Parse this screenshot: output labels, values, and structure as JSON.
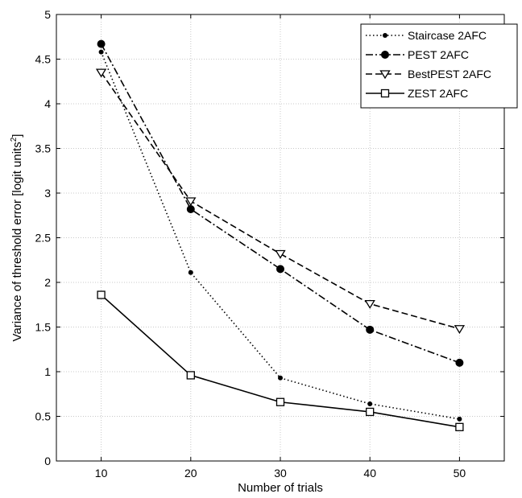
{
  "chart_data": {
    "type": "line",
    "title": "",
    "xlabel": "Number of trials",
    "ylabel": "Variance of threshold error [logit units",
    "ylabel_superscript": "2",
    "ylabel_close": "]",
    "x": [
      10,
      20,
      30,
      40,
      50
    ],
    "xlim": [
      5,
      55
    ],
    "ylim": [
      0,
      5
    ],
    "xticks": [
      "10",
      "20",
      "30",
      "40",
      "50"
    ],
    "yticks": [
      "0",
      "0.5",
      "1",
      "1.5",
      "2",
      "2.5",
      "3",
      "3.5",
      "4",
      "4.5",
      "5"
    ],
    "grid": true,
    "legend_position": "top-right",
    "series": [
      {
        "name": "Staircase 2AFC",
        "values": [
          4.58,
          2.11,
          0.93,
          0.64,
          0.47
        ],
        "line": "dotted",
        "marker": "small-dot",
        "color": "#000000"
      },
      {
        "name": "PEST 2AFC",
        "values": [
          4.67,
          2.82,
          2.15,
          1.47,
          1.1
        ],
        "line": "dashdot",
        "marker": "dot",
        "color": "#000000"
      },
      {
        "name": "BestPEST 2AFC",
        "values": [
          4.35,
          2.91,
          2.32,
          1.76,
          1.48
        ],
        "line": "dashed",
        "marker": "triangle-down",
        "color": "#000000"
      },
      {
        "name": "ZEST 2AFC",
        "values": [
          1.86,
          0.96,
          0.66,
          0.55,
          0.38
        ],
        "line": "solid",
        "marker": "square",
        "color": "#000000"
      }
    ]
  }
}
